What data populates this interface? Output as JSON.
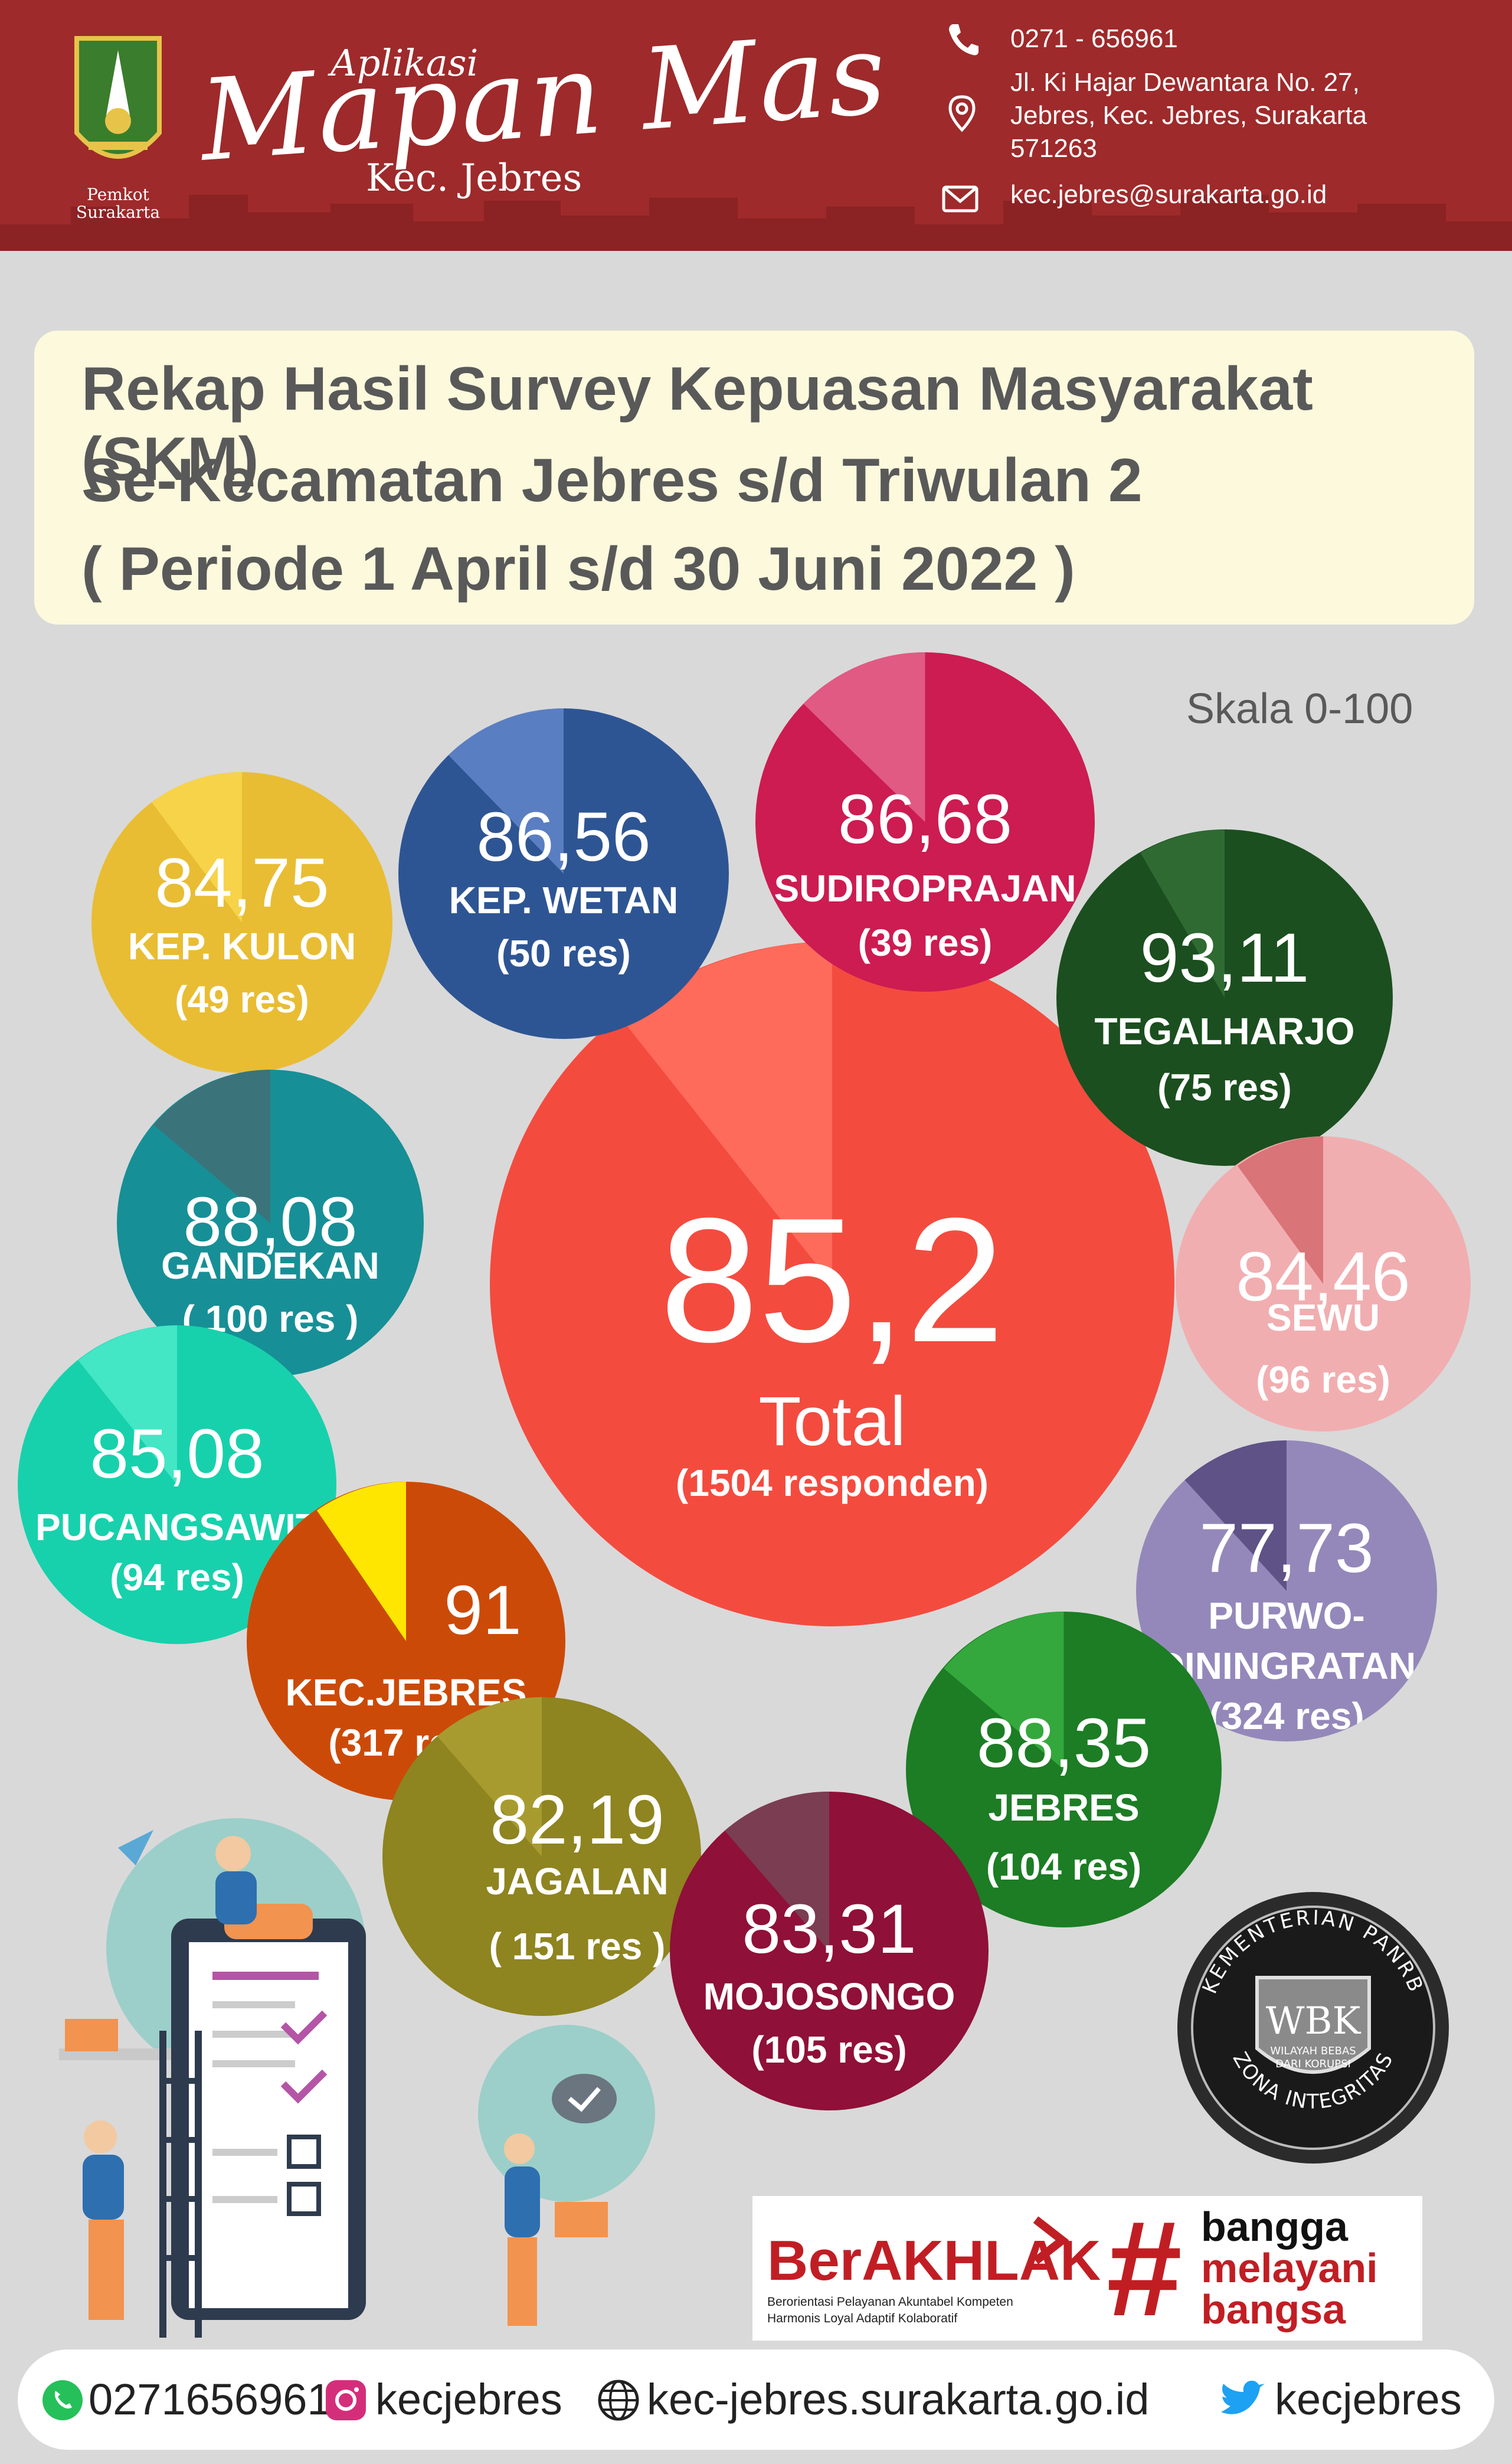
{
  "header": {
    "crest_label_1": "Pemkot",
    "crest_label_2": "Surakarta",
    "app_sub": "Aplikasi",
    "app_title": "Mapan Mas",
    "app_kec": "Kec. Jebres",
    "phone": "0271 - 656961",
    "address_1": "Jl. Ki Hajar Dewantara No. 27,",
    "address_2": "Jebres, Kec. Jebres, Surakarta",
    "address_3": "571263",
    "email": "kec.jebres@surakarta.go.id",
    "icons": [
      "phone-icon",
      "location-pin-icon",
      "mail-icon"
    ]
  },
  "title": {
    "line1": "Rekap Hasil Survey Kepuasan Masyarakat (SKM)",
    "line2": "Se-Kecamatan Jebres s/d Triwulan 2",
    "line3": "( Periode 1 April s/d 30 Juni 2022 )"
  },
  "scale": "Skala 0-100",
  "total": {
    "value": "85,2",
    "label": "Total",
    "res": "(1504 responden)",
    "color": "#f44b3f"
  },
  "bubbles": [
    {
      "value": "84,75",
      "label": "KEP. KULON",
      "res": "(49 res)",
      "color": "#e8bd33"
    },
    {
      "value": "86,56",
      "label": "KEP. WETAN",
      "res": "(50 res)",
      "color": "#2e5593"
    },
    {
      "value": "86,68",
      "label": "SUDIROPRAJAN",
      "res": "(39 res)",
      "color": "#cc1c52"
    },
    {
      "value": "93,11",
      "label": "TEGALHARJO",
      "res": "(75 res)",
      "color": "#1b4f1f"
    },
    {
      "value": "88,08",
      "label": "GANDEKAN",
      "res": "( 100 res )",
      "color": "#178f96"
    },
    {
      "value": "84,46",
      "label": "SEWU",
      "res": "(96 res)",
      "color": "#f1aeb0"
    },
    {
      "value": "85,08",
      "label": "PUCANGSAWIT",
      "res": "(94 res)",
      "color": "#17d1ac"
    },
    {
      "value": "91",
      "label": "KEC.JEBRES",
      "res": "(317 res)",
      "color": "#cc4a07"
    },
    {
      "value": "77,73",
      "label_1": "PURWO-",
      "label_2": "DININGRATAN",
      "res": "(324 res)",
      "color": "#9488ba"
    },
    {
      "value": "88,35",
      "label": "JEBRES",
      "res": "(104 res)",
      "color": "#1c7d24"
    },
    {
      "value": "82,19",
      "label": "JAGALAN",
      "res": "( 151 res )",
      "color": "#8e8420"
    },
    {
      "value": "83,31",
      "label": "MOJOSONGO",
      "res": "(105 res)",
      "color": "#8f1038"
    }
  ],
  "wbk": {
    "top": "KEMENTERIAN PANRB",
    "mark": "WBK",
    "sub_1": "WILAYAH BEBAS",
    "sub_2": "DARI KORUPSI",
    "bottom": "ZONA INTEGRITAS"
  },
  "berakhlak": {
    "logo": "BerAKHLAK",
    "tagline_1": "Berorientasi Pelayanan Akuntabel Kompeten",
    "tagline_2": "Harmonis Loyal Adaptif Kolaboratif"
  },
  "bangga": {
    "hash": "#",
    "line1": "bangga",
    "line2": "melayani",
    "line3": "bangsa"
  },
  "footer": {
    "whatsapp": "0271656961",
    "instagram": "kecjebres",
    "website": "kec-jebres.surakarta.go.id",
    "twitter": "kecjebres",
    "icons": [
      "whatsapp-icon",
      "instagram-icon",
      "globe-icon",
      "twitter-icon"
    ]
  },
  "colors": {
    "header": "#9e2a2b",
    "title_bg": "#fdf9dd",
    "background": "#d9d9d9",
    "yellow_slice": "#ffe600"
  }
}
